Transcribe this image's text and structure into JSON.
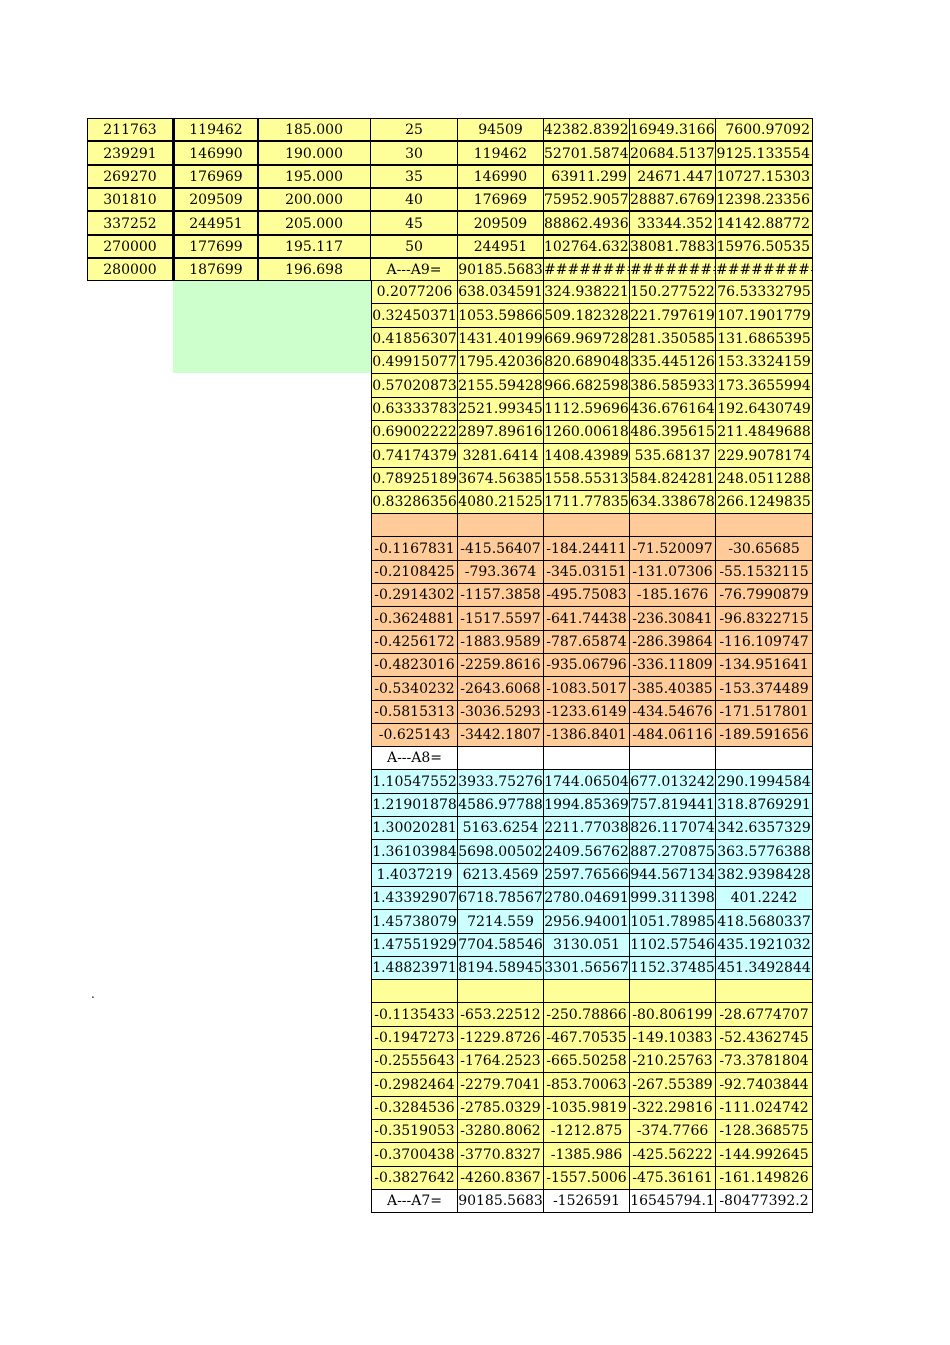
{
  "colors": {
    "yellow": "#ffff99",
    "peach": "#ffcc99",
    "cyan": "#ccffff",
    "light_green": "#ccffcc",
    "white": "#ffffff"
  },
  "top_block": {
    "rows": [
      [
        "211763",
        "119462",
        "185.000",
        "25",
        "94509",
        "42382.8392",
        "16949.3166",
        "7600.97092"
      ],
      [
        "239291",
        "146990",
        "190.000",
        "30",
        "119462",
        "52701.5874",
        "20684.5137",
        "9125.133554"
      ],
      [
        "269270",
        "176969",
        "195.000",
        "35",
        "146990",
        "63911.299",
        "24671.447",
        "10727.15303"
      ],
      [
        "301810",
        "209509",
        "200.000",
        "40",
        "176969",
        "75952.9057",
        "28887.6769",
        "12398.23356"
      ],
      [
        "337252",
        "244951",
        "205.000",
        "45",
        "209509",
        "88862.4936",
        "33344.352",
        "14142.88772"
      ],
      [
        "270000",
        "177699",
        "195.117",
        "50",
        "244951",
        "102764.632",
        "38081.7883",
        "15976.50535"
      ],
      [
        "280000",
        "187699",
        "196.698",
        "A---A9=",
        "90185.5683",
        "##########",
        "##########",
        "###########"
      ]
    ]
  },
  "section_a9": {
    "rows": [
      [
        "0.2077206",
        "638.034591",
        "324.938221",
        "150.277522",
        "76.53332795"
      ],
      [
        "0.32450371",
        "1053.59866",
        "509.182328",
        "221.797619",
        "107.1901779"
      ],
      [
        "0.41856307",
        "1431.40199",
        "669.969728",
        "281.350585",
        "131.6865395"
      ],
      [
        "0.49915077",
        "1795.42036",
        "820.689048",
        "335.445126",
        "153.3324159"
      ],
      [
        "0.57020873",
        "2155.59428",
        "966.682598",
        "386.585933",
        "173.3655994"
      ],
      [
        "0.63333783",
        "2521.99345",
        "1112.59696",
        "436.676164",
        "192.6430749"
      ],
      [
        "0.69002222",
        "2897.89616",
        "1260.00618",
        "486.395615",
        "211.4849688"
      ],
      [
        "0.74174379",
        "3281.6414",
        "1408.43989",
        "535.68137",
        "229.9078174"
      ],
      [
        "0.78925189",
        "3674.56385",
        "1558.55313",
        "584.824281",
        "248.0511288"
      ],
      [
        "0.83286356",
        "4080.21525",
        "1711.77835",
        "634.338678",
        "266.1249835"
      ]
    ]
  },
  "section_neg1": {
    "rows": [
      [
        "-0.1167831",
        "-415.56407",
        "-184.24411",
        "-71.520097",
        "-30.65685"
      ],
      [
        "-0.2108425",
        "-793.3674",
        "-345.03151",
        "-131.07306",
        "-55.1532115"
      ],
      [
        "-0.2914302",
        "-1157.3858",
        "-495.75083",
        "-185.1676",
        "-76.7990879"
      ],
      [
        "-0.3624881",
        "-1517.5597",
        "-641.74438",
        "-236.30841",
        "-96.8322715"
      ],
      [
        "-0.4256172",
        "-1883.9589",
        "-787.65874",
        "-286.39864",
        "-116.109747"
      ],
      [
        "-0.4823016",
        "-2259.8616",
        "-935.06796",
        "-336.11809",
        "-134.951641"
      ],
      [
        "-0.5340232",
        "-2643.6068",
        "-1083.5017",
        "-385.40385",
        "-153.374489"
      ],
      [
        "-0.5815313",
        "-3036.5293",
        "-1233.6149",
        "-434.54676",
        "-171.517801"
      ],
      [
        "-0.625143",
        "-3442.1807",
        "-1386.8401",
        "-484.06116",
        "-189.591656"
      ]
    ]
  },
  "a8_label": "A---A8=",
  "section_a8": {
    "rows": [
      [
        "1.10547552",
        "3933.75276",
        "1744.06504",
        "677.013242",
        "290.1994584"
      ],
      [
        "1.21901878",
        "4586.97788",
        "1994.85369",
        "757.819441",
        "318.8769291"
      ],
      [
        "1.30020281",
        "5163.6254",
        "2211.77038",
        "826.117074",
        "342.6357329"
      ],
      [
        "1.36103984",
        "5698.00502",
        "2409.56762",
        "887.270875",
        "363.5776388"
      ],
      [
        "1.4037219",
        "6213.4569",
        "2597.76566",
        "944.567134",
        "382.9398428"
      ],
      [
        "1.43392907",
        "6718.78567",
        "2780.04691",
        "999.311398",
        "401.2242"
      ],
      [
        "1.45738079",
        "7214.559",
        "2956.94001",
        "1051.78985",
        "418.5680337"
      ],
      [
        "1.47551929",
        "7704.58546",
        "3130.051",
        "1102.57546",
        "435.1921032"
      ],
      [
        "1.48823971",
        "8194.58945",
        "3301.56567",
        "1152.37485",
        "451.3492844"
      ]
    ]
  },
  "section_neg2": {
    "rows": [
      [
        "-0.1135433",
        "-653.22512",
        "-250.78866",
        "-80.806199",
        "-28.6774707"
      ],
      [
        "-0.1947273",
        "-1229.8726",
        "-467.70535",
        "-149.10383",
        "-52.4362745"
      ],
      [
        "-0.2555643",
        "-1764.2523",
        "-665.50258",
        "-210.25763",
        "-73.3781804"
      ],
      [
        "-0.2982464",
        "-2279.7041",
        "-853.70063",
        "-267.55389",
        "-92.7403844"
      ],
      [
        "-0.3284536",
        "-2785.0329",
        "-1035.9819",
        "-322.29816",
        "-111.024742"
      ],
      [
        "-0.3519053",
        "-3280.8062",
        "-1212.875",
        "-374.7766",
        "-128.368575"
      ],
      [
        "-0.3700438",
        "-3770.8327",
        "-1385.986",
        "-425.56222",
        "-144.992645"
      ],
      [
        "-0.3827642",
        "-4260.8367",
        "-1557.5006",
        "-475.36161",
        "-161.149826"
      ]
    ]
  },
  "a7_row": [
    "A---A7=",
    "90185.5683",
    "-1526591",
    "16545794.1",
    "-80477392.2"
  ],
  "stray_mark": "."
}
